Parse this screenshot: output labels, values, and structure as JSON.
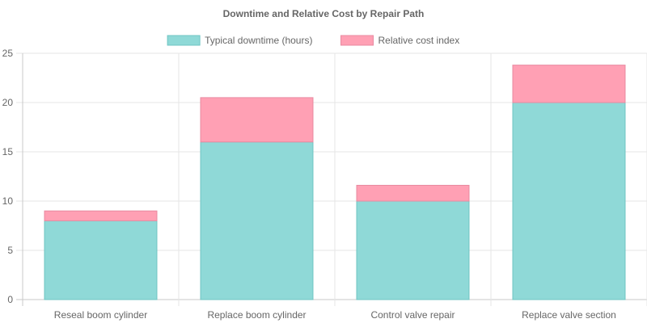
{
  "chart_data": {
    "type": "bar",
    "stacked": true,
    "title": "Downtime and Relative Cost by Repair Path",
    "categories": [
      "Reseal boom cylinder",
      "Replace boom cylinder",
      "Control valve repair",
      "Replace valve section"
    ],
    "series": [
      {
        "name": "Typical downtime (hours)",
        "values": [
          8,
          16,
          10,
          20
        ],
        "color": "#8fd9d7",
        "border": "#6fc5c3"
      },
      {
        "name": "Relative cost index",
        "values": [
          1,
          4.5,
          1.6,
          3.8
        ],
        "color": "#ffa0b4",
        "border": "#e88aa0"
      }
    ],
    "ylim": [
      0,
      25
    ],
    "yticks": [
      "0",
      "5",
      "10",
      "15",
      "20",
      "25"
    ],
    "grid": true,
    "legend": "top-center"
  }
}
